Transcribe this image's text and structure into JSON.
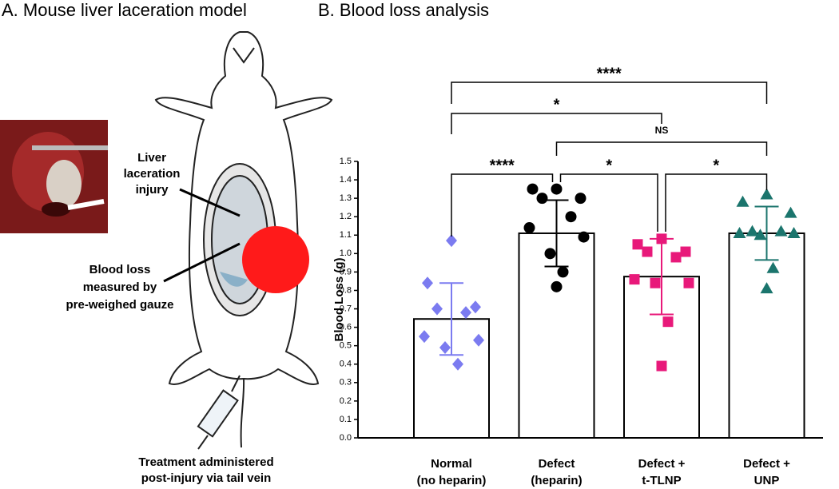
{
  "panel_a": {
    "title": "A. Mouse liver laceration model",
    "injury_label": [
      "Liver",
      "laceration",
      "injury"
    ],
    "gauze_label": [
      "Blood loss",
      "measured by",
      "pre-weighed gauze"
    ],
    "treatment_label": [
      "Treatment administered",
      "post-injury via tail vein"
    ]
  },
  "chart_data": {
    "type": "bar",
    "title": "B. Blood loss analysis",
    "y_label": "Blood Loss (g)",
    "categories": [
      [
        "Normal",
        "(no heparin)"
      ],
      [
        "Defect",
        "(heparin)"
      ],
      [
        "Defect +",
        "t-TLNP"
      ],
      [
        "Defect +",
        "UNP"
      ]
    ],
    "values": [
      0.645,
      1.11,
      0.875,
      1.11
    ],
    "errors": [
      0.195,
      0.18,
      0.205,
      0.145
    ],
    "points": [
      [
        1.07,
        0.84,
        0.71,
        0.7,
        0.68,
        0.55,
        0.53,
        0.49,
        0.4
      ],
      [
        1.35,
        1.35,
        1.3,
        1.3,
        1.2,
        1.14,
        1.09,
        1.0,
        0.9,
        0.82
      ],
      [
        1.08,
        1.05,
        1.01,
        1.01,
        0.98,
        0.86,
        0.84,
        0.84,
        0.63,
        0.39
      ],
      [
        1.32,
        1.28,
        1.22,
        1.12,
        1.12,
        1.11,
        1.11,
        1.1,
        0.92,
        0.81
      ]
    ],
    "colors": [
      "#7b7bf0",
      "#000000",
      "#e8197a",
      "#1b756d"
    ],
    "markers": [
      "diamond",
      "circle",
      "square",
      "triangle"
    ],
    "ylim": [
      0,
      1.5
    ],
    "yticks": [
      {
        "value": 0,
        "label": "0.0"
      },
      0.1,
      0.2,
      0.3,
      0.4,
      0.5,
      0.6,
      0.7,
      0.8,
      0.9,
      {
        "value": 1,
        "label": "1.0"
      },
      1.1,
      1.2,
      1.3,
      1.4,
      1.5
    ],
    "comparisons": [
      {
        "label": "****",
        "from": 0,
        "to": 3
      },
      {
        "label": "*",
        "from": 0,
        "to": 2
      },
      {
        "label": "NS",
        "from": 1,
        "to": 3
      },
      {
        "label": "****",
        "from": 0,
        "to": 1
      },
      {
        "label": "*",
        "from": 1,
        "to": 2
      },
      {
        "label": "*",
        "from": 2,
        "to": 3
      }
    ]
  }
}
